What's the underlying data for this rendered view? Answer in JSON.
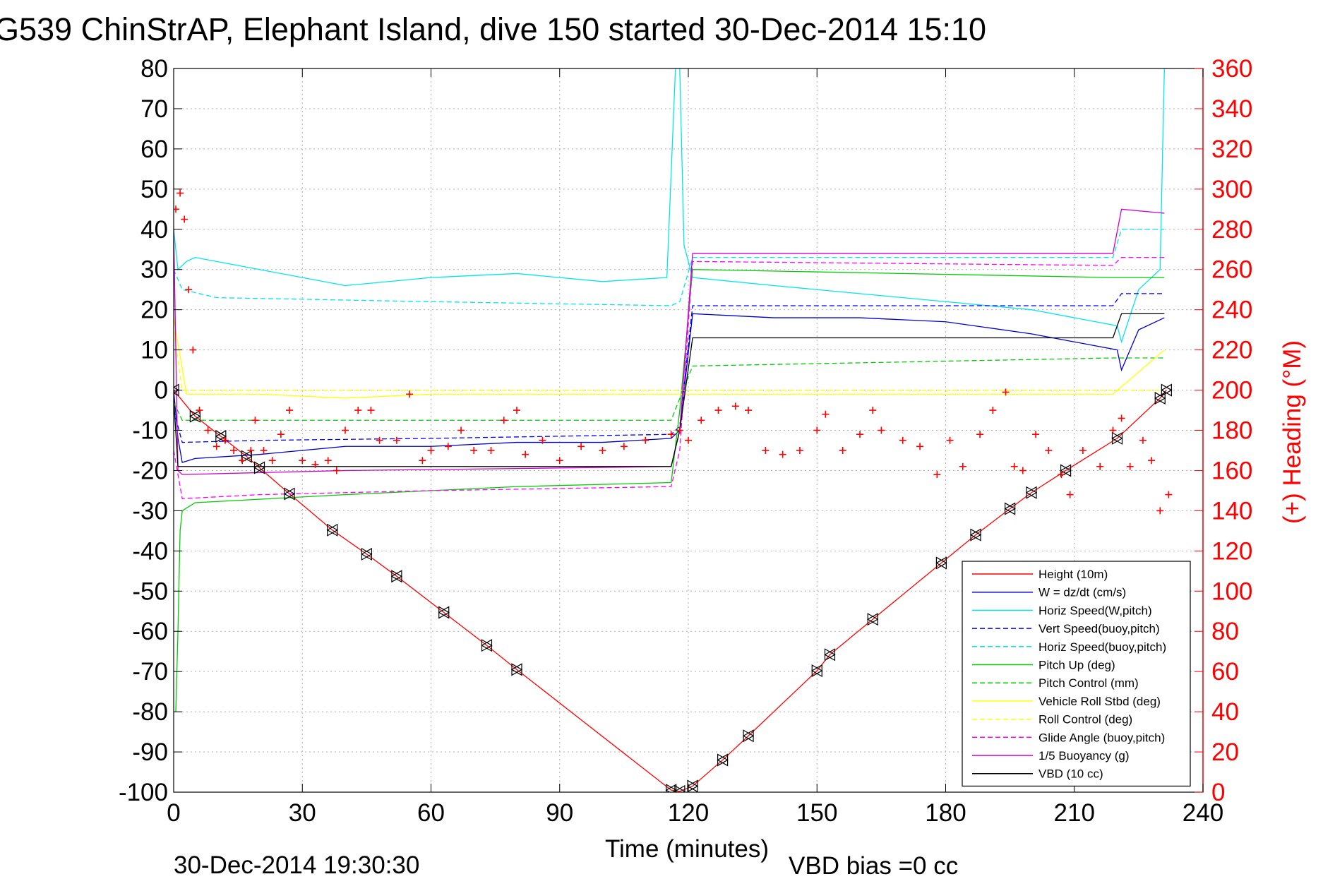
{
  "chart_data": {
    "type": "line",
    "title": "G539 ChinStrAP, Elephant Island, dive 150 started 30-Dec-2014 15:10",
    "xlabel": "Time (minutes)",
    "ylabel_right": "(+) Heading (°M)",
    "footer_left": "30-Dec-2014 19:30:30",
    "footer_right": "VBD bias =0 cc",
    "xlim": [
      0,
      240
    ],
    "ylim": [
      -100,
      80
    ],
    "ylim_right": [
      0,
      360
    ],
    "x_ticks": [
      0,
      30,
      60,
      90,
      120,
      150,
      180,
      210,
      240
    ],
    "y_ticks": [
      -100,
      -90,
      -80,
      -70,
      -60,
      -50,
      -40,
      -30,
      -20,
      -10,
      0,
      10,
      20,
      30,
      40,
      50,
      60,
      70,
      80
    ],
    "y_ticks_right": [
      0,
      20,
      40,
      60,
      80,
      100,
      120,
      140,
      160,
      180,
      200,
      220,
      240,
      260,
      280,
      300,
      320,
      340,
      360
    ],
    "grid": true,
    "legend_position": "bottom-right",
    "series": [
      {
        "name": "Height (10m)",
        "color": "#ff0000",
        "style": "solid",
        "x": [
          0,
          5,
          11,
          17,
          20,
          27,
          37,
          45,
          52,
          63,
          73,
          80,
          116,
          118,
          121,
          128,
          134,
          150,
          153,
          163,
          179,
          187,
          195,
          200,
          208,
          220,
          230,
          231.5
        ],
        "y": [
          0,
          -6.5,
          -11.5,
          -16.5,
          -19.3,
          -25.8,
          -34.8,
          -40.8,
          -46.3,
          -55.3,
          -63.5,
          -69.5,
          -99.5,
          -99.8,
          -98.5,
          -92,
          -86,
          -69.8,
          -65.8,
          -57,
          -43,
          -36,
          -29.5,
          -25.5,
          -20,
          -12,
          -2,
          0
        ]
      },
      {
        "name": "W = dz/dt (cm/s)",
        "color": "#0000cc",
        "style": "solid",
        "x": [
          0,
          1,
          2,
          5,
          20,
          40,
          60,
          80,
          100,
          116,
          118,
          121,
          140,
          160,
          180,
          200,
          210,
          220,
          221,
          225,
          231
        ],
        "y": [
          0,
          -12,
          -18,
          -17,
          -16,
          -14,
          -14,
          -13,
          -13,
          -12,
          -10,
          19,
          18,
          18,
          17,
          14,
          12,
          10,
          5,
          15,
          18
        ]
      },
      {
        "name": "Horiz Speed(W,pitch)",
        "color": "#00e5ee",
        "style": "solid",
        "x": [
          0,
          1,
          3,
          5,
          20,
          40,
          60,
          80,
          100,
          115,
          117,
          117.5,
          118,
          119,
          121,
          140,
          160,
          180,
          200,
          210,
          220,
          221,
          225,
          230,
          231,
          231.5
        ],
        "y": [
          40,
          30,
          32,
          33,
          30,
          26,
          28,
          29,
          27,
          28,
          80,
          80,
          80,
          36,
          28,
          26,
          24,
          22,
          20,
          18,
          16,
          12,
          25,
          30,
          80,
          80
        ]
      },
      {
        "name": "Vert Speed(buoy,pitch)",
        "color": "#0000ff",
        "style": "dashed",
        "x": [
          0,
          2,
          20,
          60,
          116,
          118,
          121,
          219,
          221,
          231
        ],
        "y": [
          -5,
          -13,
          -12.5,
          -12,
          -11,
          -9,
          21,
          21,
          24,
          24
        ]
      },
      {
        "name": "Horiz Speed(buoy,pitch)",
        "color": "#00e5ee",
        "style": "dashed",
        "x": [
          0,
          2,
          10,
          60,
          116,
          118,
          121,
          219,
          221,
          231
        ],
        "y": [
          30,
          25,
          23,
          22,
          21,
          22,
          33,
          33,
          40,
          40
        ]
      },
      {
        "name": "Pitch Up (deg)",
        "color": "#00cc00",
        "style": "solid",
        "x": [
          0.5,
          1,
          1.5,
          2,
          5,
          40,
          80,
          116,
          118,
          121,
          219,
          221,
          231
        ],
        "y": [
          -80,
          -60,
          -35,
          -30,
          -28,
          -26,
          -24,
          -23,
          -5,
          30,
          28,
          28,
          28
        ]
      },
      {
        "name": "Pitch Control (mm)",
        "color": "#00cc00",
        "style": "dashed",
        "x": [
          0,
          2,
          116,
          121,
          219,
          221,
          231
        ],
        "y": [
          -3,
          -7.5,
          -7.5,
          6,
          8,
          8,
          8
        ]
      },
      {
        "name": "Vehicle Roll Stbd (deg)",
        "color": "#ffff00",
        "style": "solid",
        "x": [
          0,
          3,
          20,
          40,
          60,
          80,
          100,
          116,
          121,
          140,
          160,
          180,
          200,
          219,
          231
        ],
        "y": [
          18,
          -1,
          -1,
          -2,
          -1,
          -1,
          -1,
          -1,
          -1,
          -1,
          -1,
          -1,
          -1,
          -1,
          10
        ]
      },
      {
        "name": "Roll Control (deg)",
        "color": "#ffff00",
        "style": "dashed",
        "x": [
          0,
          2,
          230
        ],
        "y": [
          15,
          0,
          0
        ]
      },
      {
        "name": "Glide Angle (buoy,pitch)",
        "color": "#ff00ff",
        "style": "dashed",
        "x": [
          0,
          2,
          20,
          60,
          116,
          118,
          121,
          219,
          221,
          231
        ],
        "y": [
          -15,
          -27,
          -26,
          -25,
          -24,
          -15,
          32,
          31,
          33,
          33
        ]
      },
      {
        "name": "1/5 Buoyancy (g)",
        "color": "#cc00cc",
        "style": "solid",
        "x": [
          0,
          1,
          2,
          40,
          80,
          116,
          118,
          121,
          219,
          221,
          231
        ],
        "y": [
          40,
          -20,
          -21,
          -20,
          -19.5,
          -19,
          -10,
          34,
          34,
          45,
          44
        ]
      },
      {
        "name": "VBD (10 cc)",
        "color": "#000000",
        "style": "solid",
        "x": [
          0,
          1,
          2,
          116,
          118,
          121,
          219,
          221,
          231
        ],
        "y": [
          -2,
          -19,
          -19,
          -19,
          -10,
          13,
          13,
          19,
          19
        ]
      }
    ],
    "heading": {
      "marker": "+",
      "color": "#ff0000",
      "axis": "right",
      "x": [
        0.5,
        1.5,
        2.5,
        3.5,
        4.5,
        6,
        8,
        10,
        12,
        14,
        16,
        18,
        19,
        21,
        23,
        25,
        27,
        30,
        33,
        36,
        38,
        40,
        43,
        46,
        48,
        52,
        55,
        58,
        60,
        64,
        67,
        70,
        74,
        77,
        80,
        82,
        86,
        90,
        95,
        100,
        105,
        110,
        116,
        118,
        120,
        123,
        127,
        131,
        134,
        138,
        142,
        146,
        150,
        152,
        156,
        160,
        163,
        165,
        170,
        174,
        178,
        181,
        184,
        188,
        191,
        194,
        196,
        198,
        201,
        204,
        207,
        209,
        212,
        216,
        219,
        221,
        223,
        226,
        228,
        230,
        232
      ],
      "y": [
        290,
        298,
        285,
        250,
        220,
        190,
        180,
        172,
        175,
        170,
        165,
        170,
        185,
        170,
        165,
        178,
        190,
        165,
        163,
        165,
        160,
        180,
        190,
        190,
        175,
        175,
        198,
        165,
        170,
        172,
        180,
        170,
        170,
        185,
        190,
        168,
        175,
        165,
        172,
        170,
        172,
        175,
        178,
        180,
        175,
        185,
        190,
        192,
        190,
        170,
        168,
        170,
        180,
        188,
        170,
        178,
        190,
        180,
        175,
        172,
        158,
        175,
        162,
        178,
        190,
        199,
        162,
        160,
        178,
        170,
        158,
        148,
        170,
        162,
        180,
        186,
        162,
        175,
        165,
        140,
        148
      ]
    }
  }
}
